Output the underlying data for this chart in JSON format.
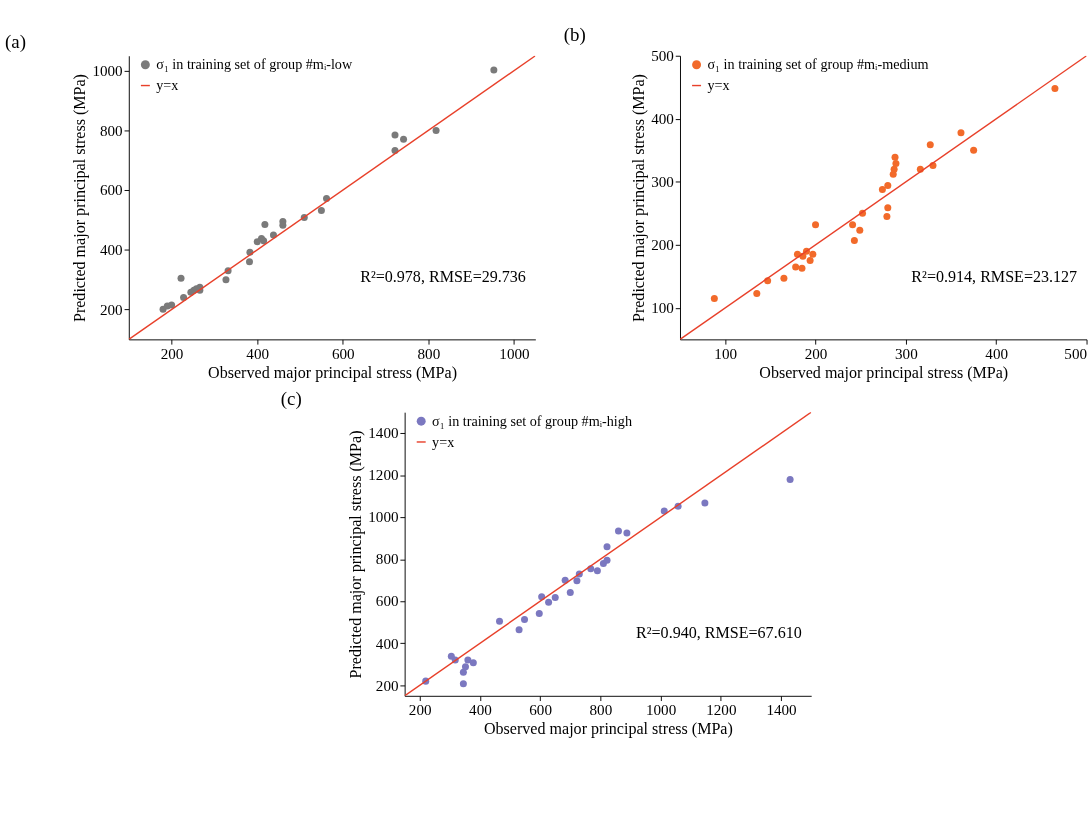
{
  "chart_data": [
    {
      "type": "scatter",
      "title": "(a)",
      "xlabel": "Observed major principal stress (MPa)",
      "ylabel": "Predicted major principal stress (MPa)",
      "xlim": [
        100,
        1050
      ],
      "ylim": [
        100,
        1050
      ],
      "xticks": [
        200,
        400,
        600,
        800,
        1000
      ],
      "yticks": [
        200,
        400,
        600,
        800,
        1000
      ],
      "grid": false,
      "legend": "top left",
      "marker": "circle",
      "annotations": [
        "R²=0.978, RMSE=29.736"
      ],
      "series": [
        {
          "name": "σ₁ in training set of group #mᵢ-low",
          "color": "#7a7a7a",
          "x": [
            180,
            190,
            200,
            222,
            228,
            245,
            252,
            258,
            266,
            266,
            327,
            332,
            382,
            383,
            400,
            410,
            415,
            418,
            438,
            460,
            460,
            510,
            550,
            562,
            722,
            722,
            742,
            818,
            953
          ],
          "values": [
            201,
            212,
            215,
            305,
            240,
            258,
            265,
            270,
            275,
            265,
            300,
            330,
            360,
            392,
            427,
            438,
            430,
            485,
            450,
            495,
            482,
            508,
            532,
            572,
            785,
            733,
            770,
            800,
            1002
          ]
        },
        {
          "name": "y=x",
          "color": "#e8402a",
          "type": "line",
          "marker": "none",
          "x": [
            100,
            1050
          ],
          "values": [
            100,
            1050
          ]
        }
      ]
    },
    {
      "type": "scatter",
      "title": "(b)",
      "xlabel": "Observed major principal stress (MPa)",
      "ylabel": "Predicted major principal stress (MPa)",
      "xlim": [
        50,
        500
      ],
      "ylim": [
        50,
        500
      ],
      "xticks": [
        100,
        200,
        300,
        400,
        500
      ],
      "yticks": [
        100,
        200,
        300,
        400,
        500
      ],
      "grid": false,
      "legend": "top left",
      "marker": "circle",
      "annotations": [
        "R²=0.914, RMSE=23.127"
      ],
      "series": [
        {
          "name": "σ₁ in training set of group #mᵢ-medium",
          "color": "#f26a2a",
          "type": "scatter",
          "x": [
            88,
            135,
            147,
            165,
            178,
            180,
            185,
            186,
            190,
            194,
            197,
            200,
            241,
            243,
            249,
            252,
            274,
            279,
            280,
            280,
            286,
            287,
            288,
            289,
            316,
            327,
            330,
            361,
            375,
            465
          ],
          "values": [
            115,
            123,
            143,
            147,
            165,
            185,
            163,
            182,
            190,
            175,
            185,
            232,
            232,
            207,
            223,
            250,
            288,
            245,
            259,
            294,
            312,
            320,
            339,
            329,
            320,
            359,
            326,
            378,
            350,
            448
          ]
        },
        {
          "name": "y=x",
          "color": "#e8402a",
          "type": "line",
          "marker": "none",
          "x": [
            50,
            500
          ],
          "values": [
            50,
            500
          ]
        }
      ]
    },
    {
      "type": "scatter",
      "title": "(c)",
      "xlabel": "Observed major principal stress (MPa)",
      "ylabel": "Predicted major principal stress (MPa)",
      "xlim": [
        150,
        1500
      ],
      "ylim": [
        150,
        1500
      ],
      "xticks": [
        200,
        400,
        600,
        800,
        1000,
        1200,
        1400
      ],
      "yticks": [
        200,
        400,
        600,
        800,
        1000,
        1200,
        1400
      ],
      "grid": false,
      "legend": "top left",
      "marker": "circle",
      "annotations": [
        "R²=0.940, RMSE=67.610"
      ],
      "series": [
        {
          "name": "σ₁ in training set of group #mᵢ-high",
          "color": "#7b78c0",
          "type": "scatter",
          "x": [
            220,
            305,
            318,
            345,
            345,
            352,
            360,
            378,
            465,
            530,
            548,
            597,
            605,
            628,
            650,
            683,
            700,
            722,
            730,
            768,
            790,
            810,
            822,
            822,
            860,
            888,
            1012,
            1058,
            1147,
            1430
          ],
          "values": [
            220,
            338,
            320,
            262,
            207,
            288,
            320,
            308,
            505,
            465,
            513,
            542,
            622,
            595,
            618,
            700,
            642,
            698,
            730,
            755,
            745,
            780,
            860,
            795,
            935,
            925,
            1030,
            1052,
            1068,
            1180
          ]
        },
        {
          "name": "y=x",
          "color": "#e8402a",
          "type": "line",
          "marker": "none",
          "x": [
            150,
            1500
          ],
          "values": [
            150,
            1500
          ]
        }
      ]
    }
  ]
}
